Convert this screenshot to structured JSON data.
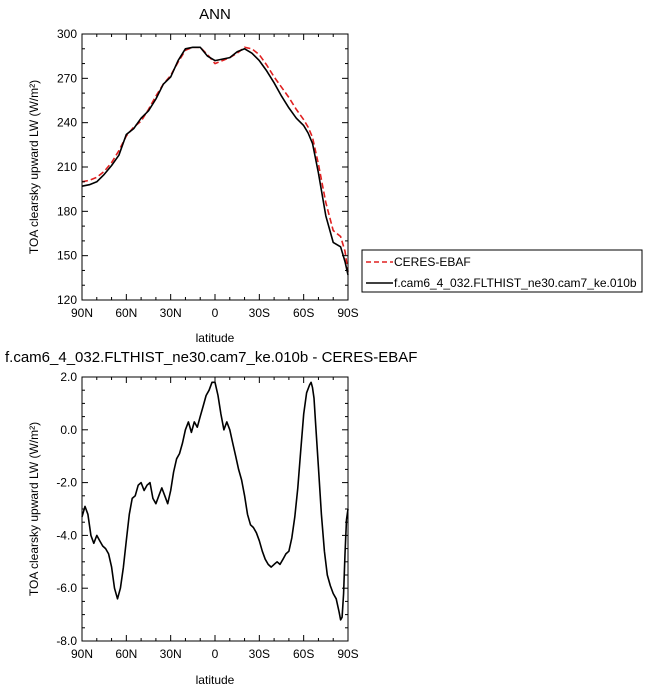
{
  "chart_data": [
    {
      "type": "line",
      "title": "ANN",
      "xlabel": "latitude",
      "ylabel": "TOA clearsky upward LW (W/m²)",
      "xlim": [
        90,
        -90
      ],
      "ylim": [
        120,
        300
      ],
      "xticks": [
        90,
        60,
        30,
        0,
        -30,
        -60,
        -90
      ],
      "xticklabels": [
        "90N",
        "60N",
        "30N",
        "0",
        "30S",
        "60S",
        "90S"
      ],
      "yticks": [
        120,
        150,
        180,
        210,
        240,
        270,
        300
      ],
      "yticklabels": [
        "120",
        "150",
        "180",
        "210",
        "240",
        "270",
        "300"
      ],
      "grid": false,
      "legend": "right",
      "series": [
        {
          "name": "CERES-EBAF",
          "color": "#e02020",
          "dash": "dashed",
          "x": [
            90,
            85,
            80,
            75,
            70,
            65,
            60,
            55,
            50,
            45,
            40,
            35,
            30,
            25,
            20,
            15,
            10,
            5,
            0,
            -5,
            -10,
            -15,
            -20,
            -25,
            -30,
            -35,
            -40,
            -45,
            -50,
            -55,
            -60,
            -63,
            -66,
            -70,
            -75,
            -80,
            -85,
            -88,
            -90
          ],
          "y": [
            200,
            201,
            203,
            207,
            213,
            221,
            231,
            237,
            241,
            249,
            258,
            266,
            272,
            281,
            289,
            291,
            291,
            286,
            280,
            282,
            284,
            287,
            291,
            290,
            286,
            279,
            271,
            264,
            257,
            249,
            242,
            237,
            230,
            212,
            186,
            167,
            163,
            153,
            139
          ]
        },
        {
          "name": "f.cam6_4_032.FLTHIST_ne30.cam7_ke.010b",
          "color": "#000000",
          "dash": "solid",
          "x": [
            90,
            85,
            80,
            75,
            70,
            65,
            60,
            55,
            50,
            45,
            40,
            35,
            30,
            25,
            20,
            15,
            10,
            5,
            0,
            -5,
            -10,
            -15,
            -20,
            -25,
            -30,
            -35,
            -40,
            -45,
            -50,
            -55,
            -60,
            -63,
            -66,
            -70,
            -75,
            -80,
            -85,
            -88,
            -90
          ],
          "y": [
            197,
            198,
            200,
            205,
            211,
            218,
            232,
            236,
            243,
            248,
            256,
            266,
            271,
            282,
            290,
            291,
            291,
            285,
            282,
            283,
            284,
            288,
            290,
            287,
            282,
            275,
            267,
            258,
            250,
            243,
            238,
            233,
            226,
            206,
            177,
            159,
            156,
            146,
            137
          ]
        }
      ]
    },
    {
      "type": "line",
      "title": "f.cam6_4_032.FLTHIST_ne30.cam7_ke.010b - CERES-EBAF",
      "xlabel": "latitude",
      "ylabel": "TOA clearsky upward LW (W/m²)",
      "xlim": [
        90,
        -90
      ],
      "ylim": [
        -8,
        2
      ],
      "xticks": [
        90,
        60,
        30,
        0,
        -30,
        -60,
        -90
      ],
      "xticklabels": [
        "90N",
        "60N",
        "30N",
        "0",
        "30S",
        "60S",
        "90S"
      ],
      "yticks": [
        -8,
        -6,
        -4,
        -2,
        0,
        2
      ],
      "yticklabels": [
        "-8.0",
        "-6.0",
        "-4.0",
        "-2.0",
        "0.0",
        "2.0"
      ],
      "grid": false,
      "series": [
        {
          "color": "#000000",
          "dash": "solid",
          "x": [
            90,
            88,
            86,
            84,
            82,
            80,
            78,
            76,
            74,
            72,
            70,
            68,
            66,
            64,
            62,
            60,
            58,
            56,
            54,
            52,
            50,
            48,
            46,
            44,
            42,
            40,
            38,
            36,
            34,
            32,
            30,
            28,
            26,
            24,
            22,
            20,
            18,
            16,
            14,
            12,
            10,
            8,
            6,
            4,
            2,
            0,
            -2,
            -4,
            -6,
            -8,
            -10,
            -12,
            -14,
            -16,
            -18,
            -20,
            -22,
            -24,
            -26,
            -28,
            -30,
            -32,
            -34,
            -36,
            -38,
            -40,
            -42,
            -44,
            -46,
            -48,
            -50,
            -52,
            -54,
            -56,
            -58,
            -60,
            -62,
            -64,
            -65,
            -66,
            -67,
            -68,
            -70,
            -72,
            -74,
            -76,
            -78,
            -80,
            -82,
            -84,
            -85,
            -86,
            -87,
            -88,
            -89,
            -90
          ],
          "y": [
            -3.3,
            -2.9,
            -3.2,
            -4.0,
            -4.3,
            -4.0,
            -4.2,
            -4.4,
            -4.5,
            -4.7,
            -5.2,
            -6.0,
            -6.4,
            -6.0,
            -5.2,
            -4.2,
            -3.2,
            -2.6,
            -2.5,
            -2.1,
            -2.0,
            -2.3,
            -2.1,
            -2.0,
            -2.6,
            -2.8,
            -2.5,
            -2.2,
            -2.5,
            -2.8,
            -2.3,
            -1.6,
            -1.1,
            -0.9,
            -0.5,
            0.0,
            0.3,
            -0.1,
            0.3,
            0.1,
            0.5,
            0.9,
            1.3,
            1.5,
            1.8,
            1.8,
            1.3,
            0.6,
            0.0,
            0.3,
            0.0,
            -0.5,
            -1.0,
            -1.5,
            -1.9,
            -2.5,
            -3.2,
            -3.6,
            -3.7,
            -3.9,
            -4.2,
            -4.6,
            -4.9,
            -5.1,
            -5.2,
            -5.1,
            -5.0,
            -5.1,
            -4.9,
            -4.7,
            -4.6,
            -4.1,
            -3.3,
            -2.2,
            -0.8,
            0.6,
            1.4,
            1.7,
            1.8,
            1.6,
            1.2,
            0.3,
            -1.4,
            -3.2,
            -4.6,
            -5.5,
            -5.9,
            -6.2,
            -6.4,
            -6.9,
            -7.2,
            -7.1,
            -6.2,
            -4.7,
            -3.4,
            -3.0
          ]
        }
      ]
    }
  ]
}
